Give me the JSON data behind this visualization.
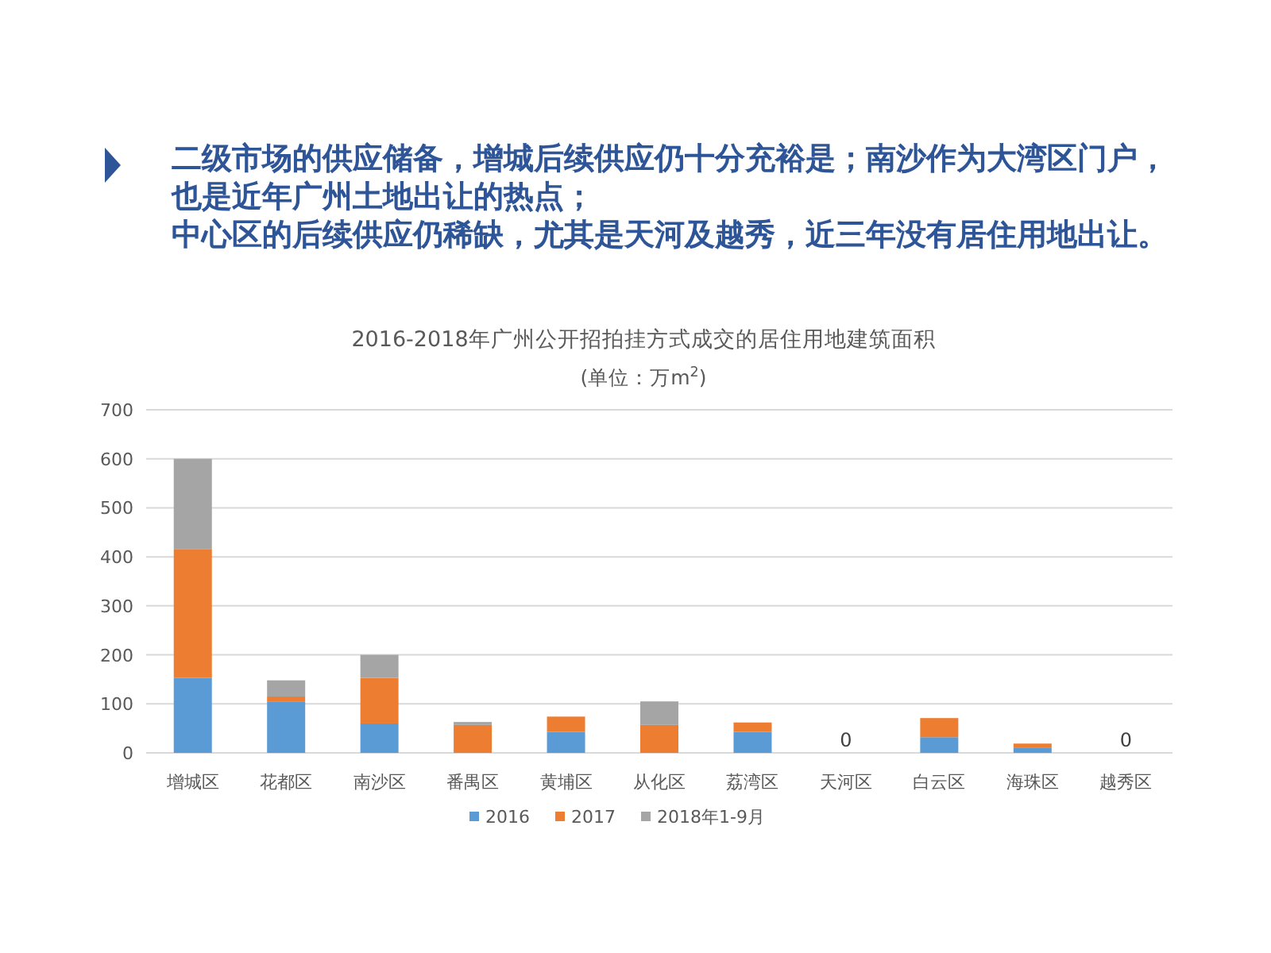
{
  "chart_data": {
    "type": "bar",
    "stacked": true,
    "title": "2016-2018年广州公开招拍挂方式成交的居住用地建筑面积",
    "subtitle": "(单位：万m$^{2}$)",
    "annotations": [
      "二级市场的供应储备，增城后续供应仍十分充裕是；南沙作为大湾区门户，",
      "也是近年广州土地出让的热点；",
      "中心区的后续供应仍稀缺，尤其是天河及越秀，近三年没有居住用地出让。"
    ],
    "categories": [
      "增城区",
      "花都区",
      "南沙区",
      "番禺区",
      "黄埔区",
      "从化区",
      "荔湾区",
      "天河区",
      "白云区",
      "海珠区",
      "越秀区"
    ],
    "series": [
      {
        "name": "2016",
        "color": "#5b9bd5",
        "values": [
          153,
          105,
          60,
          0,
          43,
          0,
          43,
          0,
          32,
          11,
          0
        ]
      },
      {
        "name": "2017",
        "color": "#ed7d31",
        "values": [
          263,
          10,
          93,
          57,
          31,
          57,
          19,
          0,
          39,
          8,
          0
        ]
      },
      {
        "name": "2018年1-9月",
        "color": "#a5a5a5",
        "values": [
          184,
          33,
          47,
          6,
          0,
          48,
          0,
          0,
          0,
          0,
          0
        ]
      }
    ],
    "totals": [
      null,
      null,
      null,
      null,
      null,
      null,
      null,
      "0",
      null,
      null,
      "0"
    ],
    "ylim": [
      0,
      700
    ],
    "yticks": [
      0,
      100,
      200,
      300,
      400,
      500,
      600,
      700
    ],
    "grid": "y",
    "legend": "bottom"
  }
}
